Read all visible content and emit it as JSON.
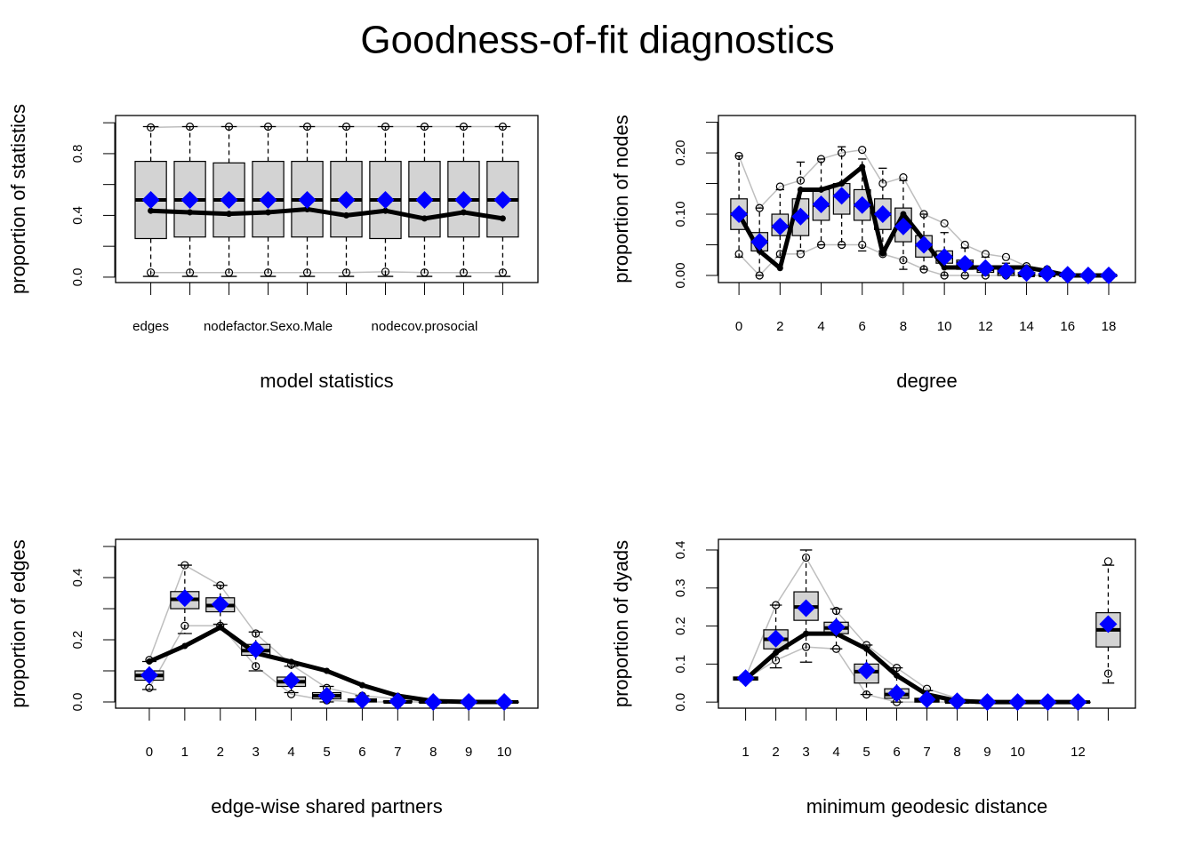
{
  "title": "Goodness-of-fit diagnostics",
  "chart_data": [
    {
      "type": "boxplot",
      "xlabel": "model statistics",
      "ylabel": "proportion of statistics",
      "categories": [
        "edges",
        null,
        null,
        "nodefactor.Sexo.Male",
        null,
        null,
        null,
        "nodecov.prosocial",
        null,
        null
      ],
      "ylim": [
        -0.035,
        1.047
      ],
      "yticks": [
        {
          "value": 0,
          "label": "0.0"
        },
        {
          "value": 0.4,
          "label": "0.4"
        },
        {
          "value": 0.8,
          "label": "0.8"
        }
      ],
      "yminorticks": [
        0.2,
        0.6,
        1.0
      ],
      "box_low": [
        0.005,
        0.005,
        0.005,
        0.005,
        0.005,
        0.005,
        0.005,
        0.005,
        0.005,
        0.005
      ],
      "box_q1": [
        0.25,
        0.26,
        0.26,
        0.26,
        0.26,
        0.26,
        0.25,
        0.26,
        0.26,
        0.26
      ],
      "box_median": [
        0.5,
        0.5,
        0.5,
        0.5,
        0.5,
        0.5,
        0.5,
        0.5,
        0.5,
        0.5
      ],
      "box_q3": [
        0.75,
        0.75,
        0.74,
        0.75,
        0.75,
        0.75,
        0.75,
        0.75,
        0.75,
        0.75
      ],
      "box_high": [
        0.975,
        0.975,
        0.975,
        0.975,
        0.975,
        0.975,
        0.975,
        0.975,
        0.975,
        0.975
      ],
      "bound_low": [
        0.03,
        0.03,
        0.03,
        0.03,
        0.03,
        0.03,
        0.035,
        0.03,
        0.03,
        0.03
      ],
      "bound_high": [
        0.97,
        0.975,
        0.975,
        0.975,
        0.975,
        0.975,
        0.975,
        0.975,
        0.975,
        0.975
      ],
      "observed": [
        0.43,
        0.42,
        0.41,
        0.42,
        0.44,
        0.4,
        0.43,
        0.38,
        0.42,
        0.38
      ],
      "simulated_mean": [
        0.5,
        0.5,
        0.5,
        0.5,
        0.5,
        0.5,
        0.5,
        0.5,
        0.5,
        0.5
      ],
      "box_color": "#d3d3d3",
      "bound_color": "#bebebe",
      "observed_color": "#000000",
      "mean_color": "#0000ff"
    },
    {
      "type": "boxplot",
      "xlabel": "degree",
      "ylabel": "proportion of nodes",
      "x": [
        0,
        1,
        2,
        3,
        4,
        5,
        6,
        7,
        8,
        9,
        10,
        11,
        12,
        13,
        14,
        15,
        16,
        17,
        18
      ],
      "xlim": [
        -1.0,
        19.3
      ],
      "xticks": [
        0,
        2,
        4,
        6,
        8,
        10,
        12,
        14,
        16,
        18
      ],
      "ylim": [
        -0.0116,
        0.261
      ],
      "yticks": [
        {
          "value": 0,
          "label": "0.00"
        },
        {
          "value": 0.1,
          "label": "0.10"
        },
        {
          "value": 0.2,
          "label": "0.20"
        }
      ],
      "yminorticks": [
        0.05,
        0.15,
        0.25
      ],
      "box_low": [
        0.03,
        0,
        0.03,
        0.04,
        0.05,
        0.05,
        0.04,
        0.04,
        0.01,
        0.01,
        0,
        0,
        0,
        0,
        0,
        0,
        0,
        0,
        0
      ],
      "box_q1": [
        0.075,
        0.04,
        0.065,
        0.065,
        0.09,
        0.1,
        0.09,
        0.075,
        0.055,
        0.03,
        0.02,
        0.01,
        0.005,
        0,
        0,
        0,
        0,
        0,
        0
      ],
      "box_median": [
        0.1,
        0.055,
        0.08,
        0.095,
        0.115,
        0.13,
        0.115,
        0.1,
        0.08,
        0.05,
        0.03,
        0.02,
        0.01,
        0.005,
        0,
        0,
        0,
        0,
        0
      ],
      "box_q3": [
        0.125,
        0.07,
        0.1,
        0.125,
        0.14,
        0.15,
        0.14,
        0.125,
        0.11,
        0.065,
        0.04,
        0.025,
        0.015,
        0.01,
        0.005,
        0.003,
        0,
        0,
        0
      ],
      "box_high": [
        0.195,
        0.11,
        0.14,
        0.185,
        0.19,
        0.21,
        0.19,
        0.175,
        0.155,
        0.1,
        0.07,
        0.045,
        0.03,
        0.02,
        0.01,
        0.007,
        0,
        0,
        0
      ],
      "bound_low": [
        0.035,
        0,
        0.035,
        0.035,
        0.05,
        0.05,
        0.05,
        0.035,
        0.025,
        0.01,
        0,
        0,
        0,
        0,
        0,
        0,
        0,
        0,
        0
      ],
      "bound_high": [
        0.195,
        0.11,
        0.145,
        0.155,
        0.19,
        0.2,
        0.205,
        0.15,
        0.16,
        0.1,
        0.085,
        0.05,
        0.035,
        0.03,
        0.015,
        0.01,
        0,
        0,
        0
      ],
      "observed": [
        0.1,
        0.04,
        0.012,
        0.14,
        0.14,
        0.15,
        0.177,
        0.036,
        0.1,
        0.058,
        0.013,
        0.013,
        0.013,
        0.013,
        0.013,
        0.007,
        0,
        0,
        0
      ],
      "simulated_mean": [
        0.1,
        0.055,
        0.08,
        0.096,
        0.116,
        0.13,
        0.115,
        0.1,
        0.08,
        0.05,
        0.03,
        0.019,
        0.012,
        0.007,
        0.004,
        0.003,
        0.001,
        0,
        0
      ],
      "box_color": "#d3d3d3",
      "bound_color": "#bebebe",
      "observed_color": "#000000",
      "mean_color": "#0000ff"
    },
    {
      "type": "boxplot",
      "xlabel": "edge-wise shared partners",
      "ylabel": "proportion of edges",
      "x": [
        0,
        1,
        2,
        3,
        4,
        5,
        6,
        7,
        8,
        9,
        10
      ],
      "xlim": [
        -0.95,
        10.95
      ],
      "xticks": [
        0,
        1,
        2,
        3,
        4,
        5,
        6,
        7,
        8,
        9,
        10
      ],
      "ylim": [
        -0.02,
        0.523
      ],
      "yticks": [
        {
          "value": 0,
          "label": "0.0"
        },
        {
          "value": 0.2,
          "label": "0.2"
        },
        {
          "value": 0.4,
          "label": "0.4"
        }
      ],
      "yminorticks": [
        0.1,
        0.3,
        0.5
      ],
      "box_low": [
        0.04,
        0.22,
        0.25,
        0.1,
        0.03,
        0,
        0,
        0,
        0,
        0,
        0
      ],
      "box_q1": [
        0.07,
        0.3,
        0.29,
        0.15,
        0.05,
        0.01,
        0,
        0,
        0,
        0,
        0
      ],
      "box_median": [
        0.085,
        0.33,
        0.31,
        0.165,
        0.065,
        0.02,
        0.005,
        0,
        0,
        0,
        0
      ],
      "box_q3": [
        0.1,
        0.355,
        0.335,
        0.185,
        0.08,
        0.03,
        0.01,
        0.003,
        0,
        0,
        0
      ],
      "box_high": [
        0.13,
        0.44,
        0.375,
        0.225,
        0.115,
        0.05,
        0.02,
        0.01,
        0,
        0,
        0
      ],
      "bound_low": [
        0.045,
        0.245,
        0.245,
        0.115,
        0.025,
        0.005,
        0,
        0,
        0,
        0,
        0
      ],
      "bound_high": [
        0.135,
        0.44,
        0.375,
        0.22,
        0.12,
        0.045,
        0.02,
        0.01,
        0,
        0,
        0
      ],
      "observed": [
        0.13,
        0.18,
        0.24,
        0.157,
        0.129,
        0.1,
        0.054,
        0.02,
        0.003,
        0,
        0
      ],
      "simulated_mean": [
        0.086,
        0.334,
        0.314,
        0.169,
        0.069,
        0.02,
        0.006,
        0.002,
        0,
        0,
        0
      ],
      "box_color": "#d3d3d3",
      "bound_color": "#bebebe",
      "observed_color": "#000000",
      "mean_color": "#0000ff"
    },
    {
      "type": "boxplot",
      "xlabel": "minimum geodesic distance",
      "ylabel": "proportion of dyads",
      "categories": [
        "1",
        "2",
        "3",
        "4",
        "5",
        "6",
        "7",
        "8",
        "9",
        "10",
        null,
        "12",
        null
      ],
      "separate_last": true,
      "ylim": [
        -0.016,
        0.428
      ],
      "yticks": [
        {
          "value": 0,
          "label": "0.0"
        },
        {
          "value": 0.1,
          "label": "0.1"
        },
        {
          "value": 0.2,
          "label": "0.2"
        },
        {
          "value": 0.3,
          "label": "0.3"
        },
        {
          "value": 0.4,
          "label": "0.4"
        }
      ],
      "box_low": [
        0.055,
        0.09,
        0.105,
        0.14,
        0.02,
        0,
        0,
        0,
        0,
        0,
        0,
        0,
        0.05
      ],
      "box_q1": [
        0.058,
        0.14,
        0.215,
        0.18,
        0.05,
        0.01,
        0,
        0,
        0,
        0,
        0,
        0,
        0.145
      ],
      "box_median": [
        0.062,
        0.165,
        0.25,
        0.195,
        0.08,
        0.02,
        0.005,
        0,
        0,
        0,
        0,
        0,
        0.19
      ],
      "box_q3": [
        0.066,
        0.19,
        0.29,
        0.21,
        0.1,
        0.035,
        0.01,
        0.003,
        0,
        0,
        0,
        0,
        0.235
      ],
      "box_high": [
        0.07,
        0.255,
        0.4,
        0.245,
        0.15,
        0.09,
        0.03,
        0.01,
        0,
        0,
        0,
        0,
        0.36
      ],
      "bound_low": [
        0.06,
        0.11,
        0.145,
        0.14,
        0.02,
        0,
        0,
        0,
        0,
        0,
        0,
        0,
        0.075
      ],
      "bound_high": [
        0.065,
        0.255,
        0.38,
        0.24,
        0.15,
        0.09,
        0.035,
        0.01,
        0,
        0,
        0,
        0,
        0.37
      ],
      "observed": [
        0.06,
        0.13,
        0.18,
        0.18,
        0.14,
        0.07,
        0.02,
        0.003,
        0,
        0,
        0,
        0,
        null
      ],
      "simulated_mean": [
        0.063,
        0.167,
        0.247,
        0.197,
        0.083,
        0.023,
        0.007,
        0.002,
        0,
        0,
        0,
        0,
        0.205
      ],
      "box_color": "#d3d3d3",
      "bound_color": "#bebebe",
      "observed_color": "#000000",
      "mean_color": "#0000ff"
    }
  ]
}
